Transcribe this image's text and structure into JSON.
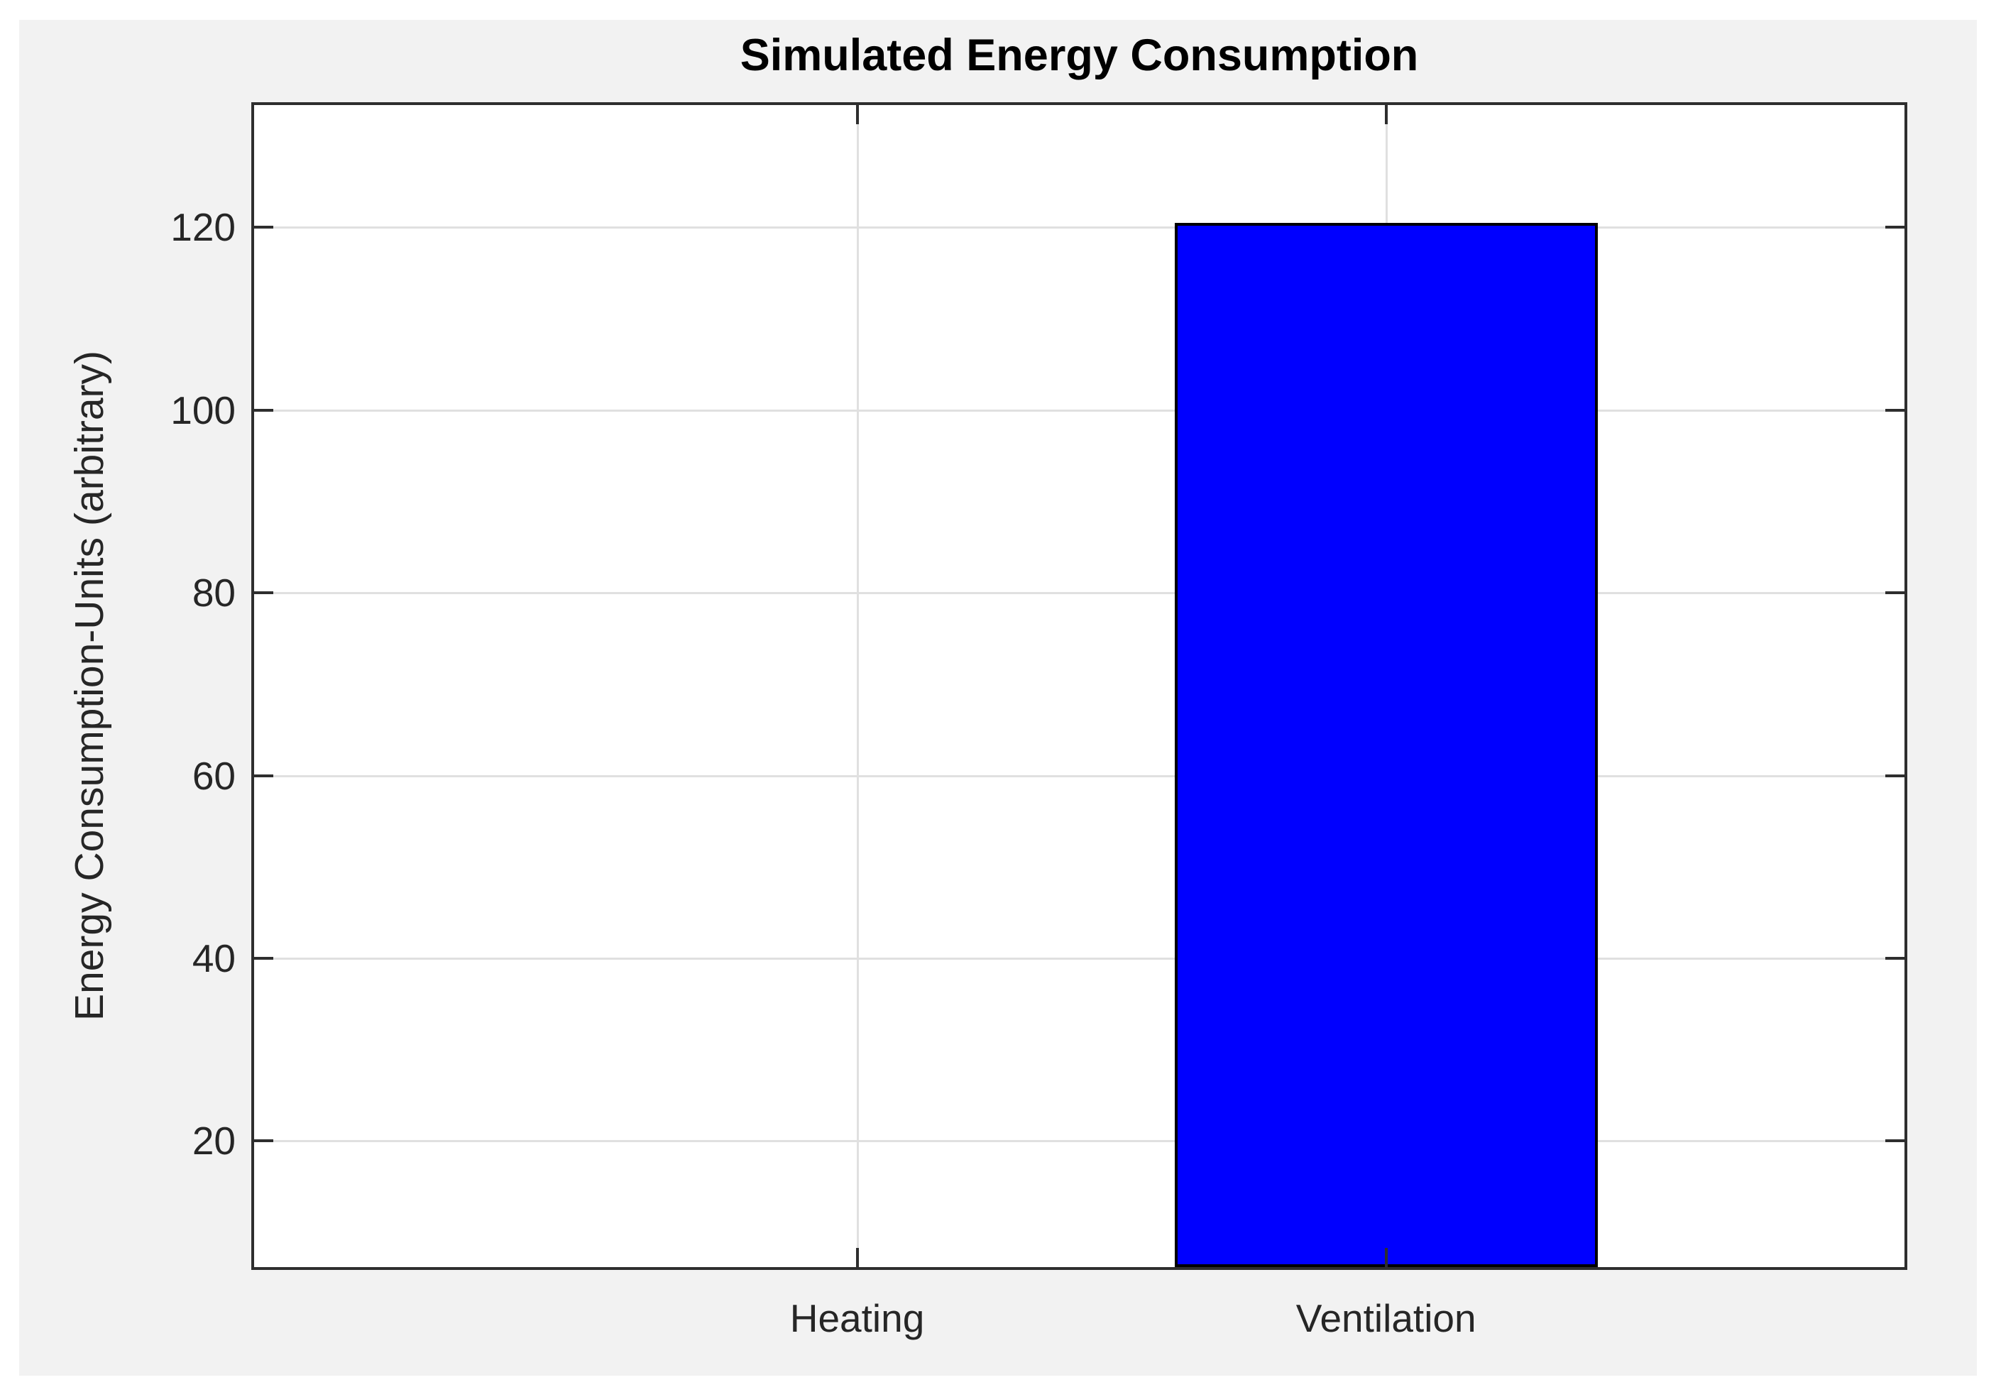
{
  "chart_data": {
    "type": "bar",
    "title": "Simulated Energy Consumption",
    "xlabel": "",
    "ylabel": "Energy Consumption-Units (arbitrary)",
    "categories": [
      "Heating",
      "Ventilation"
    ],
    "values": [
      0,
      120.5
    ],
    "yticks": [
      20,
      40,
      60,
      80,
      100,
      120
    ],
    "ylim": [
      6.2,
      133.4
    ],
    "xlim": [
      -0.14,
      2.98
    ],
    "bar_width_units": 0.8,
    "grid": true,
    "legend": "none",
    "colors": {
      "bar_fill": "#0000ff",
      "bar_edge": "#000000",
      "figure_background": "#f2f2f2",
      "plot_background": "#ffffff",
      "axis": "#2e2e2e",
      "grid": "#e0e0e0",
      "tick_text": "#262626",
      "title_text": "#000000"
    }
  }
}
